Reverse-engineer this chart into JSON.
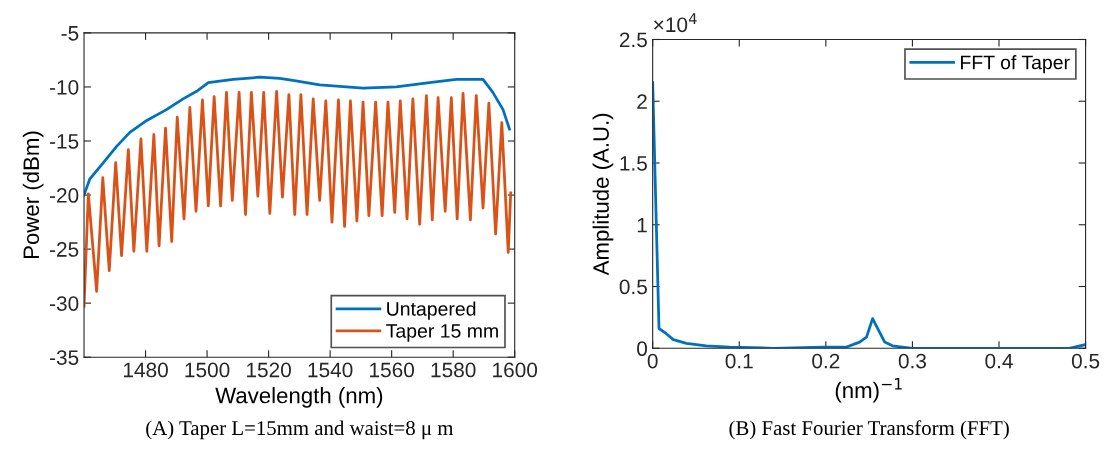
{
  "chart_data": [
    {
      "type": "line",
      "xlabel": "Wavelength (nm)",
      "ylabel": "Power (dBm)",
      "xlim": [
        1460,
        1600
      ],
      "xticks": [
        1480,
        1500,
        1520,
        1540,
        1560,
        1580,
        1600
      ],
      "ylim": [
        -35,
        -5
      ],
      "yticks": [
        -35,
        -30,
        -25,
        -20,
        -15,
        -10,
        -5
      ],
      "grid": false,
      "legend": "bottom right",
      "marker": "none",
      "line_style": "solid",
      "annotations": [
        "(A) Taper L=15mm and waist=8 μ m"
      ],
      "series": [
        {
          "name": "Untapered",
          "color": "#0072bd",
          "x": [
            1460,
            1461.9,
            1466.3,
            1470.6,
            1474.9,
            1480.4,
            1486.8,
            1492.2,
            1496.6,
            1500.4,
            1508.5,
            1517.1,
            1523.6,
            1527.9,
            1536.6,
            1550.7,
            1561.5,
            1572.3,
            1581,
            1589.7,
            1592.9,
            1596.2,
            1598.3
          ],
          "values": [
            -20.0,
            -18.5,
            -17.0,
            -15.5,
            -14.2,
            -13.1,
            -12.1,
            -11.1,
            -10.4,
            -9.6,
            -9.3,
            -9.1,
            -9.2,
            -9.4,
            -9.8,
            -10.1,
            -10.0,
            -9.6,
            -9.3,
            -9.3,
            -10.5,
            -12.1,
            -13.9
          ]
        },
        {
          "name": "Taper 15 mm",
          "color": "#d95319",
          "x": [
            1460,
            1461.4,
            1464.1,
            1466.1,
            1468.2,
            1470.3,
            1472.2,
            1474.4,
            1476.2,
            1478.5,
            1480.4,
            1482.7,
            1484.4,
            1486.5,
            1488.5,
            1490.3,
            1492.5,
            1494.4,
            1496.4,
            1498.5,
            1500.4,
            1502.3,
            1504.4,
            1506.3,
            1508.2,
            1510.4,
            1512.5,
            1514.4,
            1516.5,
            1518.4,
            1520.4,
            1522.6,
            1524.5,
            1526.6,
            1528.5,
            1530.5,
            1532.5,
            1534.5,
            1536.6,
            1538.6,
            1540.6,
            1542.7,
            1544.7,
            1546.6,
            1548.7,
            1550.7,
            1552.6,
            1554.8,
            1556.9,
            1558.8,
            1561.0,
            1562.8,
            1565.0,
            1566.9,
            1569.1,
            1571.3,
            1573.2,
            1575.1,
            1577.4,
            1579.4,
            1581.3,
            1583.2,
            1585.6,
            1587.5,
            1589.7,
            1591.6,
            1593.8,
            1595.8,
            1597.9,
            1598.7
          ],
          "values": [
            -30.3,
            -19.9,
            -28.9,
            -18.4,
            -27.0,
            -17.0,
            -25.6,
            -15.8,
            -25.2,
            -14.8,
            -25.2,
            -14.4,
            -24.7,
            -13.8,
            -24.3,
            -12.8,
            -22.2,
            -11.9,
            -21.5,
            -11.2,
            -21.0,
            -10.9,
            -21.0,
            -10.5,
            -20.5,
            -10.5,
            -21.8,
            -10.5,
            -20.1,
            -10.5,
            -21.7,
            -10.4,
            -20.2,
            -10.7,
            -21.8,
            -10.7,
            -21.8,
            -11.1,
            -20.5,
            -11.3,
            -22.5,
            -11.2,
            -22.9,
            -11.3,
            -22.4,
            -11.4,
            -21.9,
            -11.4,
            -21.9,
            -11.4,
            -21.6,
            -11.3,
            -22.2,
            -11.1,
            -22.7,
            -10.8,
            -22.3,
            -11.0,
            -21.5,
            -11.0,
            -22.2,
            -10.6,
            -22.3,
            -10.8,
            -21.2,
            -11.5,
            -23.6,
            -13.3,
            -25.3,
            -19.8
          ]
        }
      ]
    },
    {
      "type": "line",
      "xlabel": "(nm)$^{−1}$",
      "ylabel": "Amplitude (A.U.)",
      "xlim": [
        0,
        0.5
      ],
      "xticks": [
        0,
        0.1,
        0.2,
        0.3,
        0.4,
        0.5
      ],
      "ylim": [
        0,
        2.5
      ],
      "yticks": [
        0,
        0.5,
        1,
        1.5,
        2,
        2.5
      ],
      "grid": false,
      "legend": "top right",
      "marker": "none",
      "line_style": "solid",
      "annotations": [
        "×10$^{4}$",
        "(B) Fast Fourier Transform (FFT)"
      ],
      "series": [
        {
          "name": "FFT of Taper",
          "color": "#0072bd",
          "x": [
            0,
            0.0073,
            0.0154,
            0.0238,
            0.039,
            0.062,
            0.089,
            0.139,
            0.197,
            0.224,
            0.239,
            0.247,
            0.254,
            0.268,
            0.277,
            0.3,
            0.35,
            0.389,
            0.427,
            0.481,
            0.5
          ],
          "values": [
            2.15,
            0.16,
            0.12,
            0.07,
            0.04,
            0.02,
            0.01,
            0.0,
            0.01,
            0.01,
            0.05,
            0.09,
            0.24,
            0.05,
            0.02,
            0.0,
            0.0,
            0.0,
            0.0,
            0.0,
            0.03
          ]
        }
      ]
    }
  ]
}
